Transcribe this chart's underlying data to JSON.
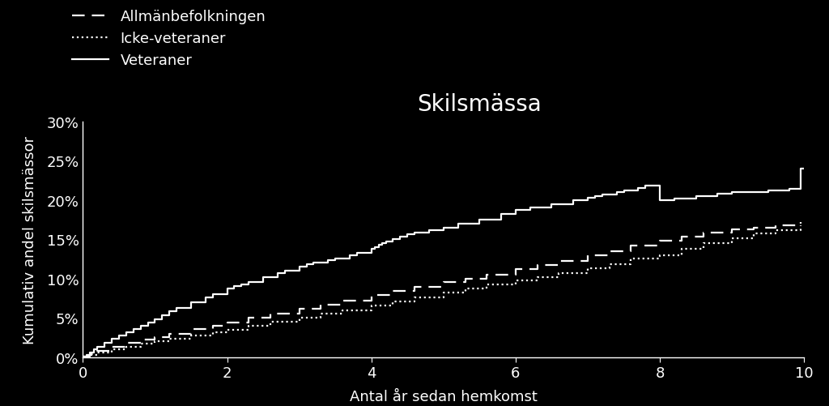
{
  "title": "Skilsmässa",
  "xlabel": "Antal år sedan hemkomst",
  "ylabel": "Kumulativ andel skilsmässor",
  "background_color": "#000000",
  "text_color": "#ffffff",
  "xlim": [
    0,
    10
  ],
  "ylim": [
    0,
    0.3
  ],
  "yticks": [
    0,
    0.05,
    0.1,
    0.15,
    0.2,
    0.25,
    0.3
  ],
  "xticks": [
    0,
    2,
    4,
    6,
    8,
    10
  ],
  "legend_labels": [
    "Allmänbefolkningen",
    "Icke-veteraner",
    "Veteraner"
  ],
  "veteraner_x": [
    0,
    0.05,
    0.1,
    0.15,
    0.2,
    0.3,
    0.4,
    0.5,
    0.6,
    0.7,
    0.8,
    0.9,
    1.0,
    1.1,
    1.2,
    1.3,
    1.5,
    1.7,
    1.8,
    2.0,
    2.1,
    2.2,
    2.3,
    2.5,
    2.7,
    2.8,
    3.0,
    3.1,
    3.2,
    3.4,
    3.5,
    3.7,
    3.8,
    4.0,
    4.05,
    4.1,
    4.15,
    4.2,
    4.3,
    4.4,
    4.5,
    4.6,
    4.8,
    5.0,
    5.2,
    5.5,
    5.8,
    6.0,
    6.2,
    6.5,
    6.8,
    7.0,
    7.1,
    7.2,
    7.4,
    7.5,
    7.7,
    7.8,
    8.0,
    8.2,
    8.5,
    8.8,
    9.0,
    9.5,
    9.8,
    9.95,
    10.0
  ],
  "veteraner_y": [
    0.001,
    0.003,
    0.006,
    0.01,
    0.013,
    0.018,
    0.023,
    0.028,
    0.032,
    0.036,
    0.04,
    0.044,
    0.048,
    0.053,
    0.058,
    0.063,
    0.07,
    0.076,
    0.08,
    0.087,
    0.09,
    0.093,
    0.096,
    0.102,
    0.107,
    0.11,
    0.115,
    0.118,
    0.12,
    0.123,
    0.125,
    0.13,
    0.133,
    0.138,
    0.14,
    0.143,
    0.145,
    0.147,
    0.15,
    0.153,
    0.156,
    0.158,
    0.162,
    0.165,
    0.17,
    0.175,
    0.182,
    0.187,
    0.19,
    0.195,
    0.2,
    0.203,
    0.205,
    0.207,
    0.21,
    0.212,
    0.215,
    0.218,
    0.2,
    0.202,
    0.205,
    0.208,
    0.21,
    0.212,
    0.214,
    0.24,
    0.24
  ],
  "allman_x": [
    0,
    0.1,
    0.2,
    0.4,
    0.6,
    0.8,
    1.0,
    1.2,
    1.5,
    1.8,
    2.0,
    2.3,
    2.6,
    3.0,
    3.3,
    3.6,
    4.0,
    4.3,
    4.6,
    5.0,
    5.3,
    5.6,
    6.0,
    6.3,
    6.6,
    7.0,
    7.3,
    7.6,
    8.0,
    8.3,
    8.6,
    9.0,
    9.3,
    9.6,
    9.95
  ],
  "allman_y": [
    0.001,
    0.004,
    0.008,
    0.013,
    0.018,
    0.022,
    0.026,
    0.03,
    0.036,
    0.04,
    0.044,
    0.05,
    0.055,
    0.062,
    0.067,
    0.072,
    0.079,
    0.084,
    0.089,
    0.096,
    0.1,
    0.105,
    0.112,
    0.117,
    0.122,
    0.13,
    0.135,
    0.142,
    0.148,
    0.153,
    0.158,
    0.163,
    0.165,
    0.168,
    0.172
  ],
  "icke_x": [
    0,
    0.1,
    0.2,
    0.4,
    0.6,
    0.8,
    1.0,
    1.2,
    1.5,
    1.8,
    2.0,
    2.3,
    2.6,
    3.0,
    3.3,
    3.6,
    4.0,
    4.3,
    4.6,
    5.0,
    5.3,
    5.6,
    6.0,
    6.3,
    6.6,
    7.0,
    7.3,
    7.6,
    8.0,
    8.3,
    8.6,
    9.0,
    9.3,
    9.6,
    9.95
  ],
  "icke_y": [
    0.001,
    0.003,
    0.006,
    0.01,
    0.013,
    0.017,
    0.02,
    0.023,
    0.028,
    0.032,
    0.035,
    0.04,
    0.045,
    0.05,
    0.055,
    0.06,
    0.066,
    0.071,
    0.076,
    0.082,
    0.087,
    0.092,
    0.098,
    0.102,
    0.107,
    0.113,
    0.118,
    0.125,
    0.13,
    0.138,
    0.145,
    0.151,
    0.157,
    0.162,
    0.168
  ],
  "line_width": 1.6,
  "title_fontsize": 20,
  "axis_label_fontsize": 13,
  "tick_fontsize": 13,
  "legend_fontsize": 13
}
